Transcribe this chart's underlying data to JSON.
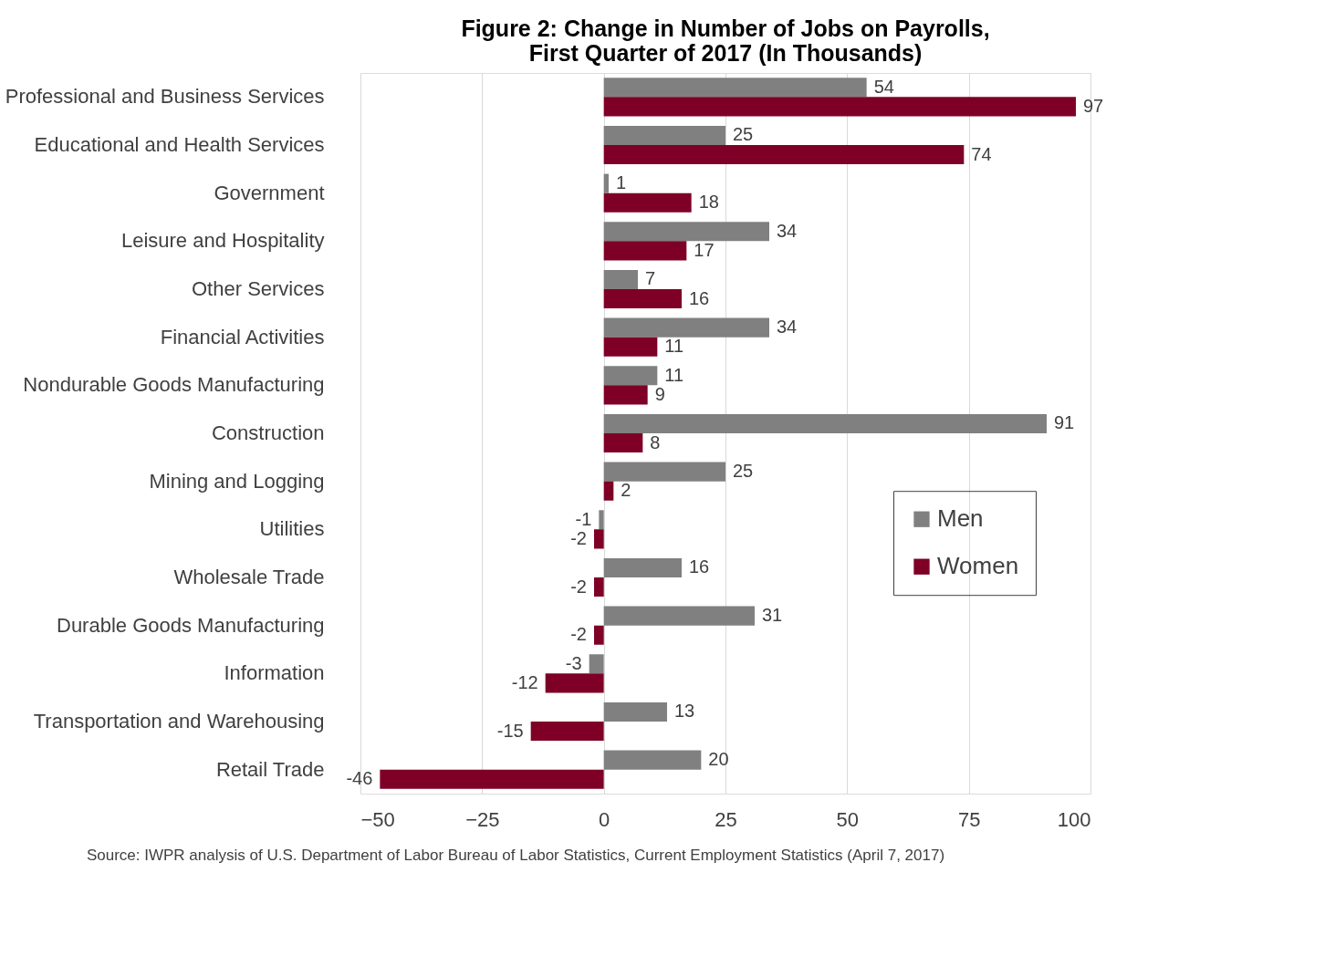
{
  "chart_data": {
    "type": "bar",
    "orientation": "horizontal",
    "title": [
      "Figure 2: Change in Number of Jobs on Payrolls,",
      "First Quarter of 2017 (In Thousands)"
    ],
    "categories": [
      "Professional and Business Services",
      "Educational and Health Services",
      "Government",
      "Leisure and Hospitality",
      "Other Services",
      "Financial Activities",
      "Nondurable Goods Manufacturing",
      "Construction",
      "Mining and Logging",
      "Utilities",
      "Wholesale Trade",
      "Durable Goods Manufacturing",
      "Information",
      "Transportation and Warehousing",
      "Retail Trade"
    ],
    "series": [
      {
        "name": "Men",
        "color": "#808080",
        "values": [
          54,
          25,
          1,
          34,
          7,
          34,
          11,
          91,
          25,
          -1,
          16,
          31,
          -3,
          13,
          20
        ]
      },
      {
        "name": "Women",
        "color": "#7f0026",
        "values": [
          97,
          74,
          18,
          17,
          16,
          11,
          9,
          8,
          2,
          -2,
          -2,
          -2,
          -12,
          -15,
          -46
        ]
      }
    ],
    "xlim": [
      -50,
      100
    ],
    "xticks": [
      -50,
      -25,
      0,
      25,
      50,
      75,
      100
    ],
    "grid": "x",
    "legend": "right",
    "data_labels": true,
    "annotations": [
      "Source: IWPR analysis of U.S. Department of Labor Bureau of Labor Statistics, Current Employment Statistics (April 7, 2017)"
    ]
  }
}
